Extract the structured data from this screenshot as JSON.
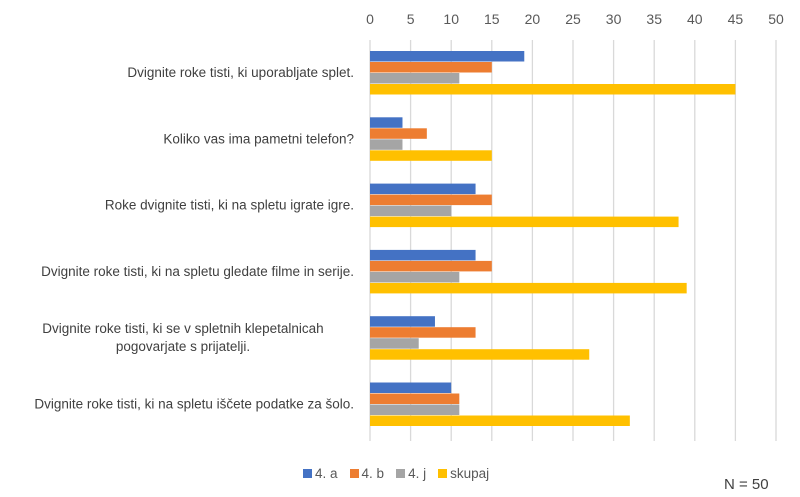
{
  "chart_data": {
    "type": "bar",
    "orientation": "horizontal",
    "title": "",
    "xlabel": "",
    "ylabel": "",
    "xlim": [
      0,
      50
    ],
    "x_ticks": [
      0,
      5,
      10,
      15,
      20,
      25,
      30,
      35,
      40,
      45,
      50
    ],
    "x_axis_position": "top",
    "grid": true,
    "legend_position": "bottom",
    "categories": [
      [
        "Dvignite roke tisti, ki uporabljate splet."
      ],
      [
        "Koliko vas ima pametni telefon?"
      ],
      [
        "Roke dvignite tisti, ki na spletu igrate igre."
      ],
      [
        "Dvignite roke tisti, ki na spletu gledate filme in serije."
      ],
      [
        "Dvignite roke tisti, ki se v spletnih klepetalnicah",
        "pogovarjate s prijatelji."
      ],
      [
        "Dvignite roke tisti, ki na spletu iščete podatke za šolo."
      ]
    ],
    "series": [
      {
        "name": "4. a",
        "color": "#4472C4",
        "values": [
          19,
          4,
          13,
          13,
          8,
          10
        ]
      },
      {
        "name": "4. b",
        "color": "#ED7D31",
        "values": [
          15,
          7,
          15,
          15,
          13,
          11
        ]
      },
      {
        "name": "4. j",
        "color": "#A5A5A5",
        "values": [
          11,
          4,
          10,
          11,
          6,
          11
        ]
      },
      {
        "name": "skupaj",
        "color": "#FFC000",
        "values": [
          45,
          15,
          38,
          39,
          27,
          32
        ]
      }
    ],
    "annotation": "N = 50"
  }
}
